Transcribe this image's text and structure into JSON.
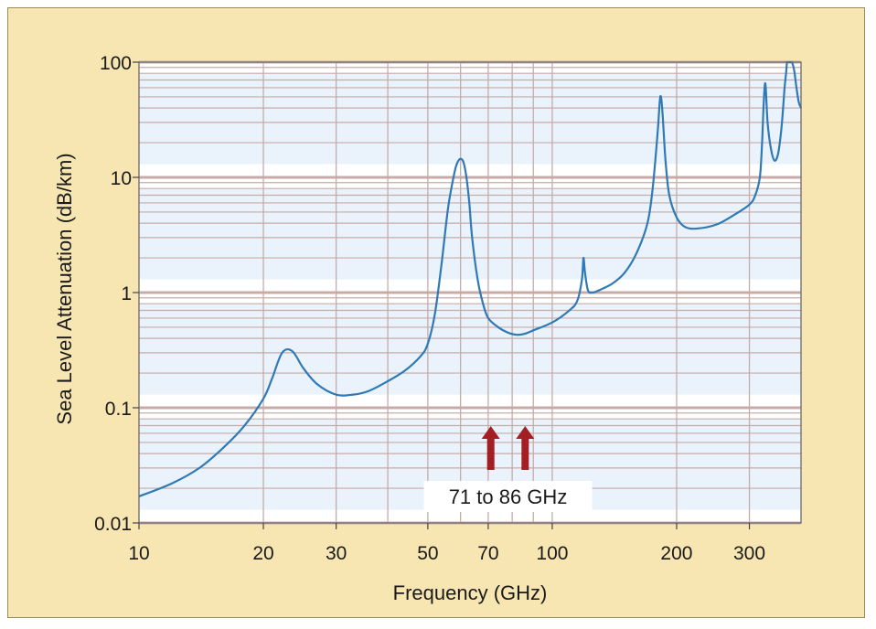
{
  "chart_data": {
    "type": "line",
    "title": "",
    "xlabel": "Frequency (GHz)",
    "ylabel": "Sea Level Attenuation (dB/km)",
    "x_scale": "log",
    "y_scale": "log",
    "xlim": [
      10,
      400
    ],
    "ylim": [
      0.01,
      100
    ],
    "grid": true,
    "legend": "none",
    "x_ticks": [
      {
        "value": 10,
        "label": "10"
      },
      {
        "value": 20,
        "label": "20"
      },
      {
        "value": 30,
        "label": "30"
      },
      {
        "value": 50,
        "label": "50"
      },
      {
        "value": 70,
        "label": "70"
      },
      {
        "value": 100,
        "label": "100"
      },
      {
        "value": 200,
        "label": "200"
      },
      {
        "value": 300,
        "label": "300"
      }
    ],
    "y_ticks": [
      {
        "value": 100,
        "label": "100"
      },
      {
        "value": 10,
        "label": "10"
      },
      {
        "value": 1,
        "label": "1"
      },
      {
        "value": 0.1,
        "label": "0.1"
      },
      {
        "value": 0.01,
        "label": "0.01"
      }
    ],
    "series": [
      {
        "x": [
          10,
          12,
          14,
          16,
          18,
          20,
          21,
          22.2,
          23.5,
          25,
          27,
          30,
          33,
          36,
          40,
          44,
          48,
          50,
          52,
          54,
          56,
          58,
          59,
          60,
          61,
          62,
          63,
          64,
          66,
          68,
          70,
          74,
          78,
          82,
          86,
          90,
          100,
          110,
          115,
          118,
          119,
          120,
          122,
          125,
          130,
          140,
          150,
          160,
          170,
          175,
          180,
          182,
          183.3,
          185,
          188,
          192,
          200,
          210,
          225,
          250,
          275,
          300,
          310,
          318,
          322,
          325,
          328,
          332,
          338,
          345,
          352,
          358,
          362,
          365,
          368,
          370,
          372,
          375,
          380,
          385,
          390,
          395,
          400
        ],
        "y": [
          0.017,
          0.022,
          0.03,
          0.045,
          0.07,
          0.12,
          0.18,
          0.3,
          0.31,
          0.22,
          0.16,
          0.13,
          0.13,
          0.14,
          0.17,
          0.21,
          0.28,
          0.36,
          0.65,
          1.8,
          5.5,
          11,
          13.5,
          14.5,
          13.5,
          10,
          6,
          3,
          1.3,
          0.8,
          0.6,
          0.5,
          0.45,
          0.43,
          0.44,
          0.47,
          0.55,
          0.7,
          0.85,
          1.3,
          2,
          1.5,
          1.05,
          1.0,
          1.05,
          1.2,
          1.5,
          2.2,
          4,
          8,
          25,
          45,
          50,
          35,
          14,
          7,
          4.5,
          3.7,
          3.6,
          3.9,
          4.7,
          5.8,
          7,
          10,
          20,
          45,
          65,
          30,
          18,
          14,
          16,
          25,
          40,
          60,
          80,
          100,
          100,
          100,
          100,
          85,
          60,
          45,
          40
        ]
      }
    ],
    "annotations": [
      {
        "label": "71 to 86 GHz",
        "arrows_at": [
          71,
          86
        ],
        "arrow_color": "#a41f24"
      }
    ]
  },
  "colors": {
    "frame_background": "#f7e5b2",
    "plot_background": "#ffffff",
    "plot_band": "#eaf3fb",
    "grid_line": "#c6aba8",
    "series_line": "#2f79b6",
    "arrow": "#a41f24"
  }
}
